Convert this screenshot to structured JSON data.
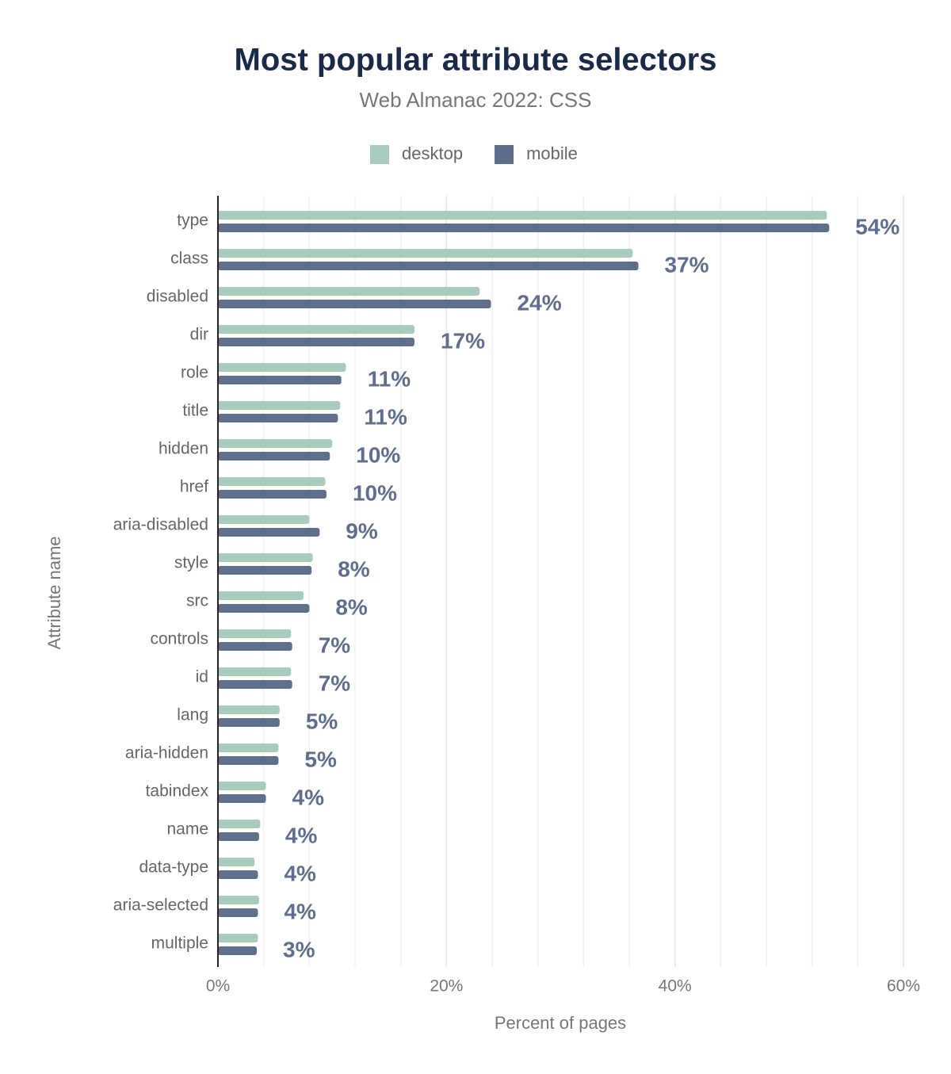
{
  "chart_data": {
    "type": "bar",
    "orientation": "horizontal",
    "title": "Most popular attribute selectors",
    "subtitle": "Web Almanac 2022: CSS",
    "x_label": "Percent of pages",
    "y_label": "Attribute name",
    "categories": [
      "type",
      "class",
      "disabled",
      "dir",
      "role",
      "title",
      "hidden",
      "href",
      "aria-disabled",
      "style",
      "src",
      "controls",
      "id",
      "lang",
      "aria-hidden",
      "tabindex",
      "name",
      "data-type",
      "aria-selected",
      "multiple"
    ],
    "series": [
      {
        "name": "desktop",
        "color": "#a8cbbb",
        "values": [
          53.3,
          36.3,
          22.9,
          17.2,
          11.2,
          10.7,
          10.0,
          9.4,
          8.0,
          8.3,
          7.5,
          6.4,
          6.4,
          5.4,
          5.3,
          4.2,
          3.7,
          3.2,
          3.6,
          3.5
        ]
      },
      {
        "name": "mobile",
        "color": "#5e6e8c",
        "values": [
          53.5,
          36.8,
          23.9,
          17.2,
          10.8,
          10.5,
          9.8,
          9.5,
          8.9,
          8.2,
          8.0,
          6.5,
          6.5,
          5.4,
          5.3,
          4.2,
          3.6,
          3.5,
          3.5,
          3.4
        ],
        "value_labels": [
          "54%",
          "37%",
          "24%",
          "17%",
          "11%",
          "11%",
          "10%",
          "10%",
          "9%",
          "8%",
          "8%",
          "7%",
          "7%",
          "5%",
          "5%",
          "4%",
          "4%",
          "4%",
          "4%",
          "3%"
        ]
      }
    ],
    "xlim": [
      0,
      60
    ],
    "xticks": [
      {
        "value": 0,
        "label": "0%"
      },
      {
        "value": 20,
        "label": "20%"
      },
      {
        "value": 40,
        "label": "40%"
      },
      {
        "value": 60,
        "label": "60%"
      }
    ],
    "xgrid": [
      4,
      8,
      12,
      16,
      24,
      28,
      32,
      36,
      44,
      48,
      52,
      56
    ],
    "grid": true,
    "legend": "top"
  }
}
